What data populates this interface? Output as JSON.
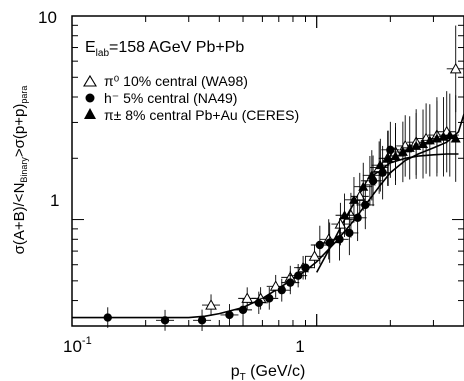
{
  "chart_data": {
    "type": "scatter",
    "xscale": "log",
    "yscale": "log",
    "xlim": [
      0.1,
      4.0
    ],
    "ylim": [
      0.3,
      10
    ],
    "grid": false,
    "title_prefix": "E",
    "title_sub": "lab",
    "title_suffix": "=158 AGeV Pb+Pb",
    "xlabel_main": "p",
    "xlabel_sub": "T",
    "xlabel_rest": " (GeV/c)",
    "ylabel": "σ(A+B)/<N_Binary>σ(p+p)_para",
    "ylabel_parts": {
      "p1": "σ(A+B)/<N",
      "sub1": "Binary",
      "p2": ">σ(p+p)",
      "sub2": "para"
    },
    "x_tick_labels": [
      "10",
      "-1",
      "1"
    ],
    "y_tick_labels": [
      "1",
      "10"
    ],
    "legend_position": "top-left",
    "legend": [
      {
        "marker": "open-triangle",
        "text": "π⁰ 10% central (WA98)"
      },
      {
        "marker": "filled-circle",
        "text": "h⁻ 5% central (NA49)"
      },
      {
        "marker": "filled-triangle",
        "text": "π± 8% central Pb+Au (CERES)"
      }
    ],
    "series": [
      {
        "name": "π⁰ 10% central (WA98)",
        "marker": "open-triangle",
        "x": [
          0.37,
          0.52,
          0.59,
          0.68,
          0.78,
          0.88,
          0.98,
          1.12,
          1.25,
          1.38,
          1.5,
          1.65,
          1.8,
          1.95,
          2.1,
          2.3,
          2.55,
          2.8,
          3.1,
          3.4,
          3.7
        ],
        "y": [
          0.38,
          0.41,
          0.41,
          0.47,
          0.52,
          0.58,
          0.66,
          0.8,
          0.95,
          1.05,
          1.3,
          1.55,
          1.8,
          2.0,
          2.15,
          2.3,
          2.4,
          2.5,
          2.6,
          2.7,
          5.5
        ]
      },
      {
        "name": "h⁻ 5% central (NA49)",
        "marker": "filled-circle",
        "x": [
          0.14,
          0.24,
          0.34,
          0.44,
          0.5,
          0.58,
          0.64,
          0.72,
          0.78,
          0.84,
          0.9,
          1.03,
          1.13,
          1.24,
          1.36,
          1.47,
          1.58,
          1.7,
          1.86,
          2.0
        ],
        "y": [
          0.33,
          0.32,
          0.32,
          0.34,
          0.36,
          0.39,
          0.41,
          0.45,
          0.49,
          0.53,
          0.58,
          0.75,
          0.77,
          0.8,
          0.86,
          1.02,
          1.18,
          1.55,
          1.7,
          2.2
        ]
      },
      {
        "name": "π± 8% central Pb+Au (CERES)",
        "marker": "filled-triangle",
        "x": [
          1.3,
          1.42,
          1.55,
          1.68,
          1.82,
          1.96,
          2.1,
          2.25,
          2.4,
          2.55,
          2.72,
          2.9,
          3.1,
          3.3,
          3.5,
          3.7
        ],
        "y": [
          1.05,
          1.25,
          1.45,
          1.65,
          1.85,
          2.0,
          2.05,
          2.15,
          2.25,
          2.3,
          2.35,
          2.45,
          2.5,
          2.55,
          2.6,
          2.5
        ]
      }
    ],
    "curves": [
      {
        "name": "",
        "x": [
          0.1,
          0.2,
          0.3,
          0.35,
          0.4,
          0.5,
          0.6,
          0.7,
          0.8,
          0.9,
          1.0,
          1.2,
          1.4,
          1.6,
          1.8,
          2.0,
          2.3,
          2.6,
          3.0,
          3.4,
          3.8,
          4.0
        ],
        "y": [
          0.33,
          0.33,
          0.33,
          0.335,
          0.345,
          0.37,
          0.41,
          0.46,
          0.51,
          0.56,
          0.62,
          0.78,
          0.97,
          1.2,
          1.45,
          1.7,
          1.95,
          2.1,
          2.25,
          2.4,
          2.7,
          3.3
        ]
      },
      {
        "name": "",
        "x": [
          1.0,
          1.15,
          1.3,
          1.5,
          1.7,
          2.0,
          2.3,
          2.6,
          3.0,
          3.4,
          3.8
        ],
        "y": [
          0.55,
          0.75,
          1.0,
          1.35,
          1.65,
          1.9,
          2.0,
          2.05,
          2.08,
          2.1,
          2.1
        ]
      }
    ]
  }
}
